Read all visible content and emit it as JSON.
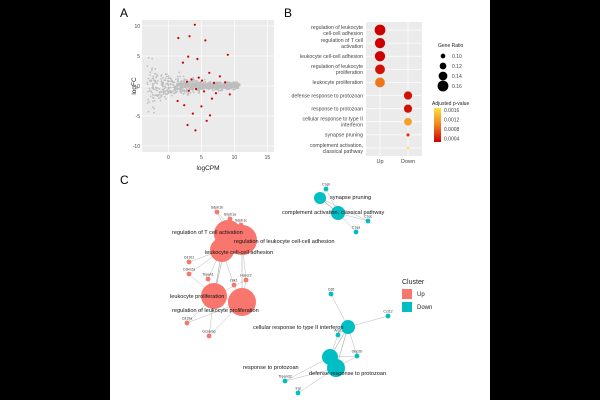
{
  "panels": {
    "a": "A",
    "b": "B",
    "c": "C"
  },
  "chart_data": [
    {
      "panel": "A",
      "type": "scatter",
      "xlabel": "logCPM",
      "ylabel": "logFC",
      "xlim": [
        -4,
        16
      ],
      "ylim": [
        -11,
        11
      ],
      "x_ticks": [
        0,
        5,
        10,
        15
      ],
      "y_ticks": [
        -10,
        -5,
        0,
        5,
        10
      ],
      "colors": {
        "background_genes": "#bdbdbd",
        "significant_genes": "#cc0000",
        "panel_bg": "#ebebeb"
      },
      "significant_points": [
        {
          "x": 4.0,
          "y": 10.2
        },
        {
          "x": 1.5,
          "y": 8.0
        },
        {
          "x": 3.2,
          "y": 8.3
        },
        {
          "x": 5.6,
          "y": 7.6
        },
        {
          "x": 9.0,
          "y": 5.2
        },
        {
          "x": 4.4,
          "y": 4.5
        },
        {
          "x": 2.2,
          "y": 3.9
        },
        {
          "x": 3.0,
          "y": 4.9
        },
        {
          "x": 6.2,
          "y": 2.2
        },
        {
          "x": 4.6,
          "y": 1.4
        },
        {
          "x": 7.8,
          "y": 1.6
        },
        {
          "x": 3.5,
          "y": 1.1
        },
        {
          "x": 5.1,
          "y": 0.9
        },
        {
          "x": 2.8,
          "y": 0.7
        },
        {
          "x": 8.6,
          "y": 0.6
        },
        {
          "x": 6.9,
          "y": 0.5
        },
        {
          "x": 4.2,
          "y": -0.5
        },
        {
          "x": 5.4,
          "y": -0.9
        },
        {
          "x": 7.2,
          "y": -1.2
        },
        {
          "x": 3.1,
          "y": -0.8
        },
        {
          "x": 6.6,
          "y": -2.1
        },
        {
          "x": 9.3,
          "y": -1.4
        },
        {
          "x": 2.4,
          "y": -3.2
        },
        {
          "x": 5.0,
          "y": -3.4
        },
        {
          "x": 3.7,
          "y": -4.6
        },
        {
          "x": 6.3,
          "y": -4.9
        },
        {
          "x": 2.9,
          "y": -6.5
        },
        {
          "x": 4.1,
          "y": -7.4
        },
        {
          "x": 5.8,
          "y": -5.8
        },
        {
          "x": 1.4,
          "y": -2.5
        }
      ]
    },
    {
      "panel": "B",
      "type": "scatter",
      "subtype": "dot-plot",
      "categories": [
        "regulation of leukocyte\ncell-cell adhesion",
        "regulation of T cell\nactivation",
        "leukocyte cell-cell adhesion",
        "regulation of leukocyte\nproliferation",
        "leukocyte proliferation",
        "defense response to protozoan",
        "response to protozoan",
        "cellular response to type II\ninterferon",
        "synapse pruning",
        "complement activation,\nclassical pathway"
      ],
      "x_categories": [
        "Up",
        "Down"
      ],
      "points": [
        {
          "category": 0,
          "x": "Up",
          "gene_ratio": 0.16,
          "p_adjust": 0.0002
        },
        {
          "category": 1,
          "x": "Up",
          "gene_ratio": 0.155,
          "p_adjust": 0.0002
        },
        {
          "category": 2,
          "x": "Up",
          "gene_ratio": 0.155,
          "p_adjust": 0.0002
        },
        {
          "category": 3,
          "x": "Up",
          "gene_ratio": 0.15,
          "p_adjust": 0.0003
        },
        {
          "category": 4,
          "x": "Up",
          "gene_ratio": 0.15,
          "p_adjust": 0.0009
        },
        {
          "category": 5,
          "x": "Down",
          "gene_ratio": 0.135,
          "p_adjust": 0.0003
        },
        {
          "category": 6,
          "x": "Down",
          "gene_ratio": 0.135,
          "p_adjust": 0.0003
        },
        {
          "category": 7,
          "x": "Down",
          "gene_ratio": 0.13,
          "p_adjust": 0.0012
        },
        {
          "category": 8,
          "x": "Down",
          "gene_ratio": 0.085,
          "p_adjust": 0.0005
        },
        {
          "category": 9,
          "x": "Down",
          "gene_ratio": 0.08,
          "p_adjust": 0.0017
        }
      ],
      "legend_size": {
        "title": "Gene Ratio",
        "entries": [
          0.1,
          0.12,
          0.14,
          0.16
        ]
      },
      "legend_color": {
        "title": "Adjusted p-value",
        "entries": [
          0.0016,
          0.0012,
          0.0008,
          0.0004
        ],
        "low_color": "#cc0000",
        "high_color": "#ffe040"
      }
    },
    {
      "panel": "C",
      "type": "network",
      "legend": {
        "title": "Cluster",
        "entries": [
          {
            "label": "Up",
            "color": "#f8766d"
          },
          {
            "label": "Down",
            "color": "#00bfc4"
          }
        ]
      },
      "term_nodes": [
        {
          "label": "regulation of T cell activation",
          "cluster": "Up"
        },
        {
          "label": "regulation of leukocyte cell-cell adhesion",
          "cluster": "Up"
        },
        {
          "label": "leukocyte cell-cell adhesion",
          "cluster": "Up"
        },
        {
          "label": "leukocyte proliferation",
          "cluster": "Up"
        },
        {
          "label": "regulation of leukocyte proliferation",
          "cluster": "Up"
        },
        {
          "label": "synapse pruning",
          "cluster": "Down"
        },
        {
          "label": "complement activation, classical pathway",
          "cluster": "Down"
        },
        {
          "label": "cellular response to type II interferon",
          "cluster": "Down"
        },
        {
          "label": "response to protozoan",
          "cluster": "Down"
        },
        {
          "label": "defense response to protozoan",
          "cluster": "Down"
        }
      ],
      "gene_nodes": [
        {
          "label": "Sdpb1b",
          "cluster": "Up"
        },
        {
          "label": "Sirpb1a",
          "cluster": "Up"
        },
        {
          "label": "Sdpb1c",
          "cluster": "Up"
        },
        {
          "label": "Cd101",
          "cluster": "Up"
        },
        {
          "label": "Cdkn2a",
          "cluster": "Up"
        },
        {
          "label": "Tspan1",
          "cluster": "Up"
        },
        {
          "label": "Havcr2",
          "cluster": "Up"
        },
        {
          "label": "Dlk1",
          "cluster": "Up"
        },
        {
          "label": "Cd19a",
          "cluster": "Up"
        },
        {
          "label": "Gcsamp",
          "cluster": "Up"
        },
        {
          "label": "C1qb",
          "cluster": "Down"
        },
        {
          "label": "C1qc",
          "cluster": "Down"
        },
        {
          "label": "C1qa",
          "cluster": "Down"
        },
        {
          "label": "Cd6",
          "cluster": "Down"
        },
        {
          "label": "Ccl12",
          "cluster": "Down"
        },
        {
          "label": "Arg1",
          "cluster": "Down"
        },
        {
          "label": "Gbp2b",
          "cluster": "Down"
        },
        {
          "label": "Tspan32",
          "cluster": "Down"
        },
        {
          "label": "Irgi",
          "cluster": "Down"
        }
      ]
    }
  ]
}
